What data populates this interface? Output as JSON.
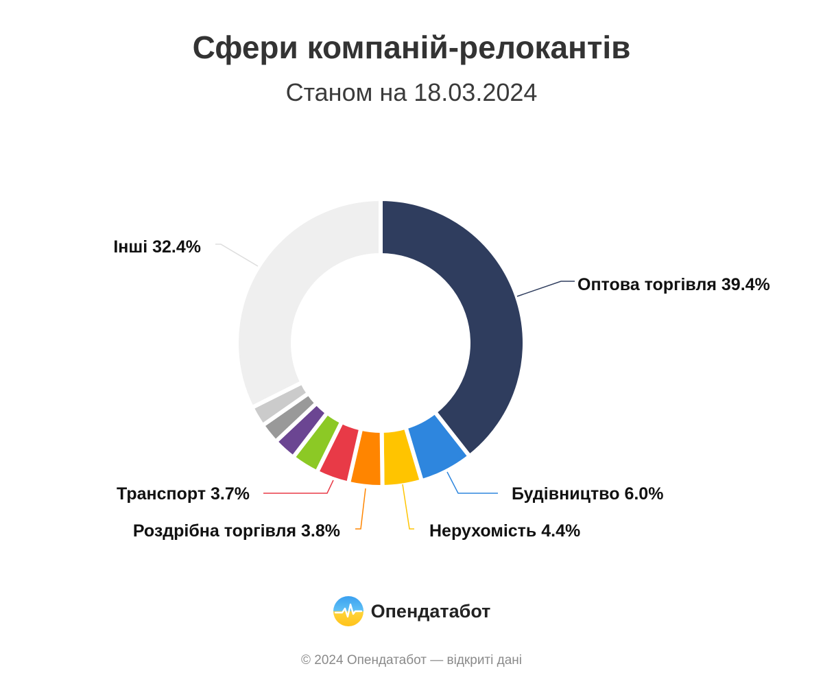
{
  "header": {
    "title": "Сфери компаній-релокантів",
    "subtitle": "Станом на 18.03.2024"
  },
  "chart_data": {
    "type": "pie",
    "variant": "donut",
    "title": "Сфери компаній-релокантів",
    "subtitle": "Станом на 18.03.2024",
    "slices": [
      {
        "key": "wholesale",
        "name": "Оптова торгівля",
        "value": 39.4,
        "label": "Оптова торгівля 39.4%",
        "color": "#2f3d5e"
      },
      {
        "key": "construction",
        "name": "Будівництво",
        "value": 6.0,
        "label": "Будівництво 6.0%",
        "color": "#2e86de"
      },
      {
        "key": "realestate",
        "name": "Нерухомість",
        "value": 4.4,
        "label": "Нерухомість 4.4%",
        "color": "#ffc400"
      },
      {
        "key": "retail",
        "name": "Роздрібна торгівля",
        "value": 3.8,
        "label": "Роздрібна торгівля 3.8%",
        "color": "#ff8500"
      },
      {
        "key": "transport",
        "name": "Транспорт",
        "value": 3.7,
        "label": "Транспорт 3.7%",
        "color": "#e83a47"
      },
      {
        "key": "unlabeled-green",
        "name": "",
        "value": 3.1,
        "label": "",
        "color": "#8cc925"
      },
      {
        "key": "unlabeled-purple",
        "name": "",
        "value": 2.6,
        "label": "",
        "color": "#6b4592"
      },
      {
        "key": "unlabeled-gray",
        "name": "",
        "value": 2.3,
        "label": "",
        "color": "#999999"
      },
      {
        "key": "unlabeled-lightgray",
        "name": "",
        "value": 2.3,
        "label": "",
        "color": "#cbcbcb"
      },
      {
        "key": "others",
        "name": "Інші",
        "value": 32.4,
        "label": "Інші 32.4%",
        "color": "#efefef"
      }
    ]
  },
  "brand": {
    "name": "Опендатабот",
    "logo_icon": "opendatabot-logo-icon"
  },
  "footer": {
    "text": "© 2024 Опендатабот — відкриті дані"
  }
}
